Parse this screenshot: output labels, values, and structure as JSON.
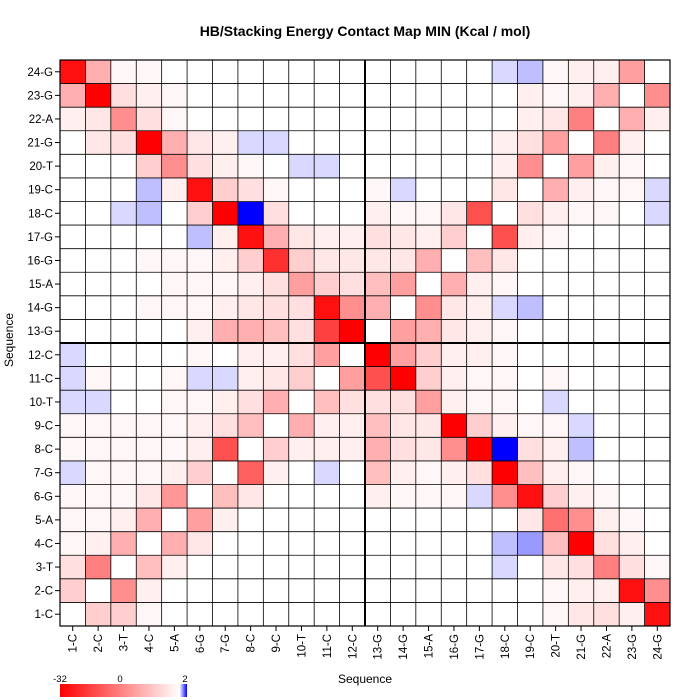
{
  "chart_data": {
    "type": "heatmap",
    "title": "HB/Stacking Energy Contact Map MIN (Kcal / mol)",
    "xlabel": "Sequence",
    "ylabel": "Sequence",
    "labels": [
      "1-C",
      "2-C",
      "3-T",
      "4-C",
      "5-A",
      "6-G",
      "7-G",
      "8-C",
      "9-C",
      "10-T",
      "11-C",
      "12-C",
      "13-G",
      "14-G",
      "15-A",
      "16-G",
      "17-G",
      "18-C",
      "19-C",
      "20-T",
      "21-G",
      "22-A",
      "23-G",
      "24-G"
    ],
    "color_range": [
      -32,
      2
    ],
    "colorbar_ticks": [
      "-32",
      "0",
      "2"
    ],
    "colors": {
      "negative": "#ff0000",
      "zero": "#ffffff",
      "positive": "#0000ff"
    },
    "strand_separator_after": 12,
    "cells": [
      [
        1,
        1,
        0
      ],
      [
        1,
        2,
        -6
      ],
      [
        1,
        3,
        -6
      ],
      [
        1,
        4,
        -1
      ],
      [
        1,
        20,
        -1
      ],
      [
        1,
        21,
        -3
      ],
      [
        1,
        22,
        -4
      ],
      [
        1,
        23,
        -2
      ],
      [
        1,
        24,
        -30
      ],
      [
        2,
        1,
        -6
      ],
      [
        2,
        2,
        0
      ],
      [
        2,
        3,
        -14
      ],
      [
        2,
        4,
        -2
      ],
      [
        2,
        20,
        -1
      ],
      [
        2,
        21,
        -2
      ],
      [
        2,
        22,
        -2
      ],
      [
        2,
        23,
        -30
      ],
      [
        2,
        24,
        -14
      ],
      [
        3,
        1,
        -4
      ],
      [
        3,
        2,
        -16
      ],
      [
        3,
        3,
        0
      ],
      [
        3,
        4,
        -8
      ],
      [
        3,
        5,
        -2
      ],
      [
        3,
        18,
        0.3
      ],
      [
        3,
        20,
        -3
      ],
      [
        3,
        21,
        -4
      ],
      [
        3,
        22,
        -16
      ],
      [
        3,
        23,
        -4
      ],
      [
        3,
        24,
        -1
      ],
      [
        4,
        1,
        -1
      ],
      [
        4,
        2,
        -2
      ],
      [
        4,
        3,
        -10
      ],
      [
        4,
        4,
        0
      ],
      [
        4,
        5,
        -10
      ],
      [
        4,
        6,
        -3
      ],
      [
        4,
        18,
        0.5
      ],
      [
        4,
        19,
        0.8
      ],
      [
        4,
        20,
        -8
      ],
      [
        4,
        21,
        -32
      ],
      [
        4,
        22,
        -4
      ],
      [
        4,
        23,
        -2
      ],
      [
        5,
        1,
        -1
      ],
      [
        5,
        2,
        -1
      ],
      [
        5,
        3,
        -2
      ],
      [
        5,
        4,
        -10
      ],
      [
        5,
        5,
        0
      ],
      [
        5,
        6,
        -12
      ],
      [
        5,
        7,
        -2
      ],
      [
        5,
        19,
        -3
      ],
      [
        5,
        20,
        -18
      ],
      [
        5,
        21,
        -14
      ],
      [
        5,
        22,
        -2
      ],
      [
        5,
        23,
        -1
      ],
      [
        6,
        1,
        -1
      ],
      [
        6,
        2,
        -1
      ],
      [
        6,
        3,
        -1
      ],
      [
        6,
        4,
        -3
      ],
      [
        6,
        5,
        -13
      ],
      [
        6,
        6,
        0
      ],
      [
        6,
        7,
        -8
      ],
      [
        6,
        8,
        -3
      ],
      [
        6,
        13,
        -2
      ],
      [
        6,
        14,
        -1
      ],
      [
        6,
        15,
        -1
      ],
      [
        6,
        16,
        -1
      ],
      [
        6,
        17,
        0.3
      ],
      [
        6,
        18,
        -14
      ],
      [
        6,
        19,
        -30
      ],
      [
        6,
        20,
        -6
      ],
      [
        6,
        21,
        -2
      ],
      [
        6,
        22,
        -1
      ],
      [
        7,
        1,
        0.3
      ],
      [
        7,
        2,
        -1
      ],
      [
        7,
        3,
        -1
      ],
      [
        7,
        4,
        -1
      ],
      [
        7,
        5,
        -2
      ],
      [
        7,
        6,
        -6
      ],
      [
        7,
        7,
        0
      ],
      [
        7,
        8,
        -20
      ],
      [
        7,
        9,
        -2
      ],
      [
        7,
        11,
        0.3
      ],
      [
        7,
        13,
        -8
      ],
      [
        7,
        14,
        -2
      ],
      [
        7,
        15,
        -1
      ],
      [
        7,
        16,
        -2
      ],
      [
        7,
        17,
        -4
      ],
      [
        7,
        18,
        -32
      ],
      [
        7,
        19,
        -8
      ],
      [
        7,
        20,
        -2
      ],
      [
        7,
        21,
        -1
      ],
      [
        8,
        1,
        -1
      ],
      [
        8,
        2,
        -1
      ],
      [
        8,
        3,
        -1
      ],
      [
        8,
        4,
        -1
      ],
      [
        8,
        5,
        -1
      ],
      [
        8,
        6,
        -2
      ],
      [
        8,
        7,
        -22
      ],
      [
        8,
        8,
        0
      ],
      [
        8,
        9,
        -6
      ],
      [
        8,
        10,
        -2
      ],
      [
        8,
        11,
        -2
      ],
      [
        8,
        12,
        -2
      ],
      [
        8,
        13,
        -10
      ],
      [
        8,
        14,
        -4
      ],
      [
        8,
        15,
        -3
      ],
      [
        8,
        16,
        -14
      ],
      [
        8,
        17,
        -32
      ],
      [
        8,
        18,
        2
      ],
      [
        8,
        19,
        -4
      ],
      [
        8,
        20,
        -2
      ],
      [
        8,
        21,
        0.5
      ],
      [
        9,
        1,
        -1
      ],
      [
        9,
        2,
        -1
      ],
      [
        9,
        3,
        -1
      ],
      [
        9,
        4,
        -1
      ],
      [
        9,
        5,
        -1
      ],
      [
        9,
        6,
        -2
      ],
      [
        9,
        7,
        -4
      ],
      [
        9,
        8,
        -8
      ],
      [
        9,
        9,
        0
      ],
      [
        9,
        10,
        -10
      ],
      [
        9,
        11,
        -2
      ],
      [
        9,
        12,
        -2
      ],
      [
        9,
        13,
        -8
      ],
      [
        9,
        14,
        -3
      ],
      [
        9,
        15,
        -3
      ],
      [
        9,
        16,
        -32
      ],
      [
        9,
        17,
        -6
      ],
      [
        9,
        18,
        -2
      ],
      [
        9,
        19,
        -1
      ],
      [
        9,
        20,
        -1
      ],
      [
        9,
        21,
        0.3
      ],
      [
        10,
        1,
        0.3
      ],
      [
        10,
        2,
        0.3
      ],
      [
        10,
        5,
        -1
      ],
      [
        10,
        6,
        -1
      ],
      [
        10,
        7,
        -2
      ],
      [
        10,
        8,
        -4
      ],
      [
        10,
        9,
        -10
      ],
      [
        10,
        10,
        0
      ],
      [
        10,
        11,
        -8
      ],
      [
        10,
        12,
        -4
      ],
      [
        10,
        13,
        -4
      ],
      [
        10,
        14,
        -4
      ],
      [
        10,
        15,
        -12
      ],
      [
        10,
        16,
        -2
      ],
      [
        10,
        17,
        -1
      ],
      [
        10,
        18,
        -1
      ],
      [
        10,
        20,
        0.3
      ],
      [
        11,
        1,
        0.3
      ],
      [
        11,
        2,
        -1
      ],
      [
        11,
        5,
        -1
      ],
      [
        11,
        6,
        0.3
      ],
      [
        11,
        7,
        0.3
      ],
      [
        11,
        8,
        -2
      ],
      [
        11,
        9,
        -3
      ],
      [
        11,
        10,
        -6
      ],
      [
        11,
        11,
        0
      ],
      [
        11,
        12,
        -12
      ],
      [
        11,
        13,
        -22
      ],
      [
        11,
        14,
        -32
      ],
      [
        11,
        15,
        -6
      ],
      [
        11,
        16,
        -2
      ],
      [
        11,
        17,
        -1
      ],
      [
        11,
        18,
        -1
      ],
      [
        11,
        20,
        -1
      ],
      [
        12,
        1,
        0.3
      ],
      [
        12,
        6,
        -1
      ],
      [
        12,
        8,
        -2
      ],
      [
        12,
        9,
        -2
      ],
      [
        12,
        10,
        -4
      ],
      [
        12,
        11,
        -12
      ],
      [
        12,
        12,
        0
      ],
      [
        12,
        13,
        -32
      ],
      [
        12,
        14,
        -12
      ],
      [
        12,
        15,
        -6
      ],
      [
        12,
        16,
        -2
      ],
      [
        12,
        17,
        -2
      ],
      [
        12,
        18,
        -1
      ],
      [
        13,
        6,
        -2
      ],
      [
        13,
        7,
        -10
      ],
      [
        13,
        8,
        -10
      ],
      [
        13,
        9,
        -8
      ],
      [
        13,
        10,
        -4
      ],
      [
        13,
        11,
        -24
      ],
      [
        13,
        12,
        -32
      ],
      [
        13,
        13,
        0
      ],
      [
        13,
        14,
        -12
      ],
      [
        13,
        15,
        -10
      ],
      [
        13,
        16,
        -3
      ],
      [
        13,
        17,
        -2
      ],
      [
        13,
        18,
        -1
      ],
      [
        14,
        4,
        -1
      ],
      [
        14,
        5,
        -1
      ],
      [
        14,
        6,
        -1
      ],
      [
        14,
        7,
        -2
      ],
      [
        14,
        8,
        -3
      ],
      [
        14,
        9,
        -4
      ],
      [
        14,
        10,
        -4
      ],
      [
        14,
        11,
        -30
      ],
      [
        14,
        12,
        -14
      ],
      [
        14,
        13,
        -10
      ],
      [
        14,
        14,
        0
      ],
      [
        14,
        15,
        -14
      ],
      [
        14,
        16,
        -3
      ],
      [
        14,
        17,
        -2
      ],
      [
        14,
        18,
        0.3
      ],
      [
        14,
        19,
        0.5
      ],
      [
        15,
        5,
        -1
      ],
      [
        15,
        6,
        -1
      ],
      [
        15,
        7,
        -1
      ],
      [
        15,
        8,
        -2
      ],
      [
        15,
        9,
        -4
      ],
      [
        15,
        10,
        -12
      ],
      [
        15,
        11,
        -6
      ],
      [
        15,
        12,
        -4
      ],
      [
        15,
        13,
        -8
      ],
      [
        15,
        14,
        -12
      ],
      [
        15,
        15,
        0
      ],
      [
        15,
        16,
        -10
      ],
      [
        15,
        17,
        -2
      ],
      [
        15,
        18,
        -1
      ],
      [
        16,
        4,
        -1
      ],
      [
        16,
        5,
        -1
      ],
      [
        16,
        6,
        -1
      ],
      [
        16,
        7,
        -2
      ],
      [
        16,
        8,
        -6
      ],
      [
        16,
        9,
        -26
      ],
      [
        16,
        10,
        -6
      ],
      [
        16,
        11,
        -3
      ],
      [
        16,
        12,
        -3
      ],
      [
        16,
        13,
        -3
      ],
      [
        16,
        14,
        -3
      ],
      [
        16,
        15,
        -10
      ],
      [
        16,
        16,
        0
      ],
      [
        16,
        17,
        -8
      ],
      [
        16,
        18,
        -3
      ],
      [
        17,
        6,
        0.5
      ],
      [
        17,
        7,
        -2
      ],
      [
        17,
        8,
        -30
      ],
      [
        17,
        9,
        -10
      ],
      [
        17,
        10,
        -3
      ],
      [
        17,
        11,
        -2
      ],
      [
        17,
        12,
        -2
      ],
      [
        17,
        13,
        -4
      ],
      [
        17,
        14,
        -3
      ],
      [
        17,
        15,
        -2
      ],
      [
        17,
        16,
        -6
      ],
      [
        17,
        17,
        0
      ],
      [
        17,
        18,
        -22
      ],
      [
        17,
        19,
        -2
      ],
      [
        17,
        20,
        -1
      ],
      [
        18,
        3,
        0.3
      ],
      [
        18,
        4,
        0.5
      ],
      [
        18,
        6,
        -6
      ],
      [
        18,
        7,
        -32
      ],
      [
        18,
        8,
        2
      ],
      [
        18,
        9,
        -4
      ],
      [
        18,
        13,
        -2
      ],
      [
        18,
        14,
        -1
      ],
      [
        18,
        15,
        -1
      ],
      [
        18,
        16,
        -3
      ],
      [
        18,
        17,
        -22
      ],
      [
        18,
        18,
        0
      ],
      [
        18,
        19,
        -4
      ],
      [
        18,
        20,
        -2
      ],
      [
        18,
        21,
        -1
      ],
      [
        18,
        22,
        -1
      ],
      [
        18,
        24,
        0.3
      ],
      [
        19,
        4,
        0.5
      ],
      [
        19,
        5,
        -2
      ],
      [
        19,
        6,
        -30
      ],
      [
        19,
        7,
        -6
      ],
      [
        19,
        8,
        -4
      ],
      [
        19,
        9,
        -1
      ],
      [
        19,
        13,
        -1
      ],
      [
        19,
        14,
        0.3
      ],
      [
        19,
        18,
        -3
      ],
      [
        19,
        19,
        0
      ],
      [
        19,
        20,
        -10
      ],
      [
        19,
        21,
        -2
      ],
      [
        19,
        22,
        -1
      ],
      [
        19,
        23,
        -1
      ],
      [
        19,
        24,
        0.3
      ],
      [
        20,
        4,
        -6
      ],
      [
        20,
        5,
        -14
      ],
      [
        20,
        6,
        -4
      ],
      [
        20,
        7,
        -2
      ],
      [
        20,
        8,
        -1
      ],
      [
        20,
        10,
        0.3
      ],
      [
        20,
        11,
        0.3
      ],
      [
        20,
        18,
        -2
      ],
      [
        20,
        19,
        -14
      ],
      [
        20,
        20,
        0
      ],
      [
        20,
        21,
        -12
      ],
      [
        20,
        22,
        -2
      ],
      [
        20,
        23,
        -1
      ],
      [
        21,
        2,
        -3
      ],
      [
        21,
        3,
        -4
      ],
      [
        21,
        4,
        -32
      ],
      [
        21,
        5,
        -10
      ],
      [
        21,
        6,
        -3
      ],
      [
        21,
        7,
        -2
      ],
      [
        21,
        8,
        0.3
      ],
      [
        21,
        9,
        0.3
      ],
      [
        21,
        18,
        -2
      ],
      [
        21,
        19,
        -4
      ],
      [
        21,
        20,
        -12
      ],
      [
        21,
        21,
        0
      ],
      [
        21,
        22,
        -16
      ],
      [
        21,
        23,
        -2
      ],
      [
        22,
        1,
        -2
      ],
      [
        22,
        2,
        -3
      ],
      [
        22,
        3,
        -14
      ],
      [
        22,
        4,
        -4
      ],
      [
        22,
        5,
        -1
      ],
      [
        22,
        19,
        -2
      ],
      [
        22,
        20,
        -3
      ],
      [
        22,
        21,
        -16
      ],
      [
        22,
        22,
        0
      ],
      [
        22,
        23,
        -10
      ],
      [
        22,
        24,
        -2
      ],
      [
        23,
        1,
        -10
      ],
      [
        23,
        2,
        -32
      ],
      [
        23,
        3,
        -4
      ],
      [
        23,
        4,
        -2
      ],
      [
        23,
        5,
        -1
      ],
      [
        23,
        19,
        -2
      ],
      [
        23,
        20,
        -1
      ],
      [
        23,
        21,
        -2
      ],
      [
        23,
        22,
        -10
      ],
      [
        23,
        23,
        0
      ],
      [
        23,
        24,
        -14
      ],
      [
        24,
        1,
        -30
      ],
      [
        24,
        2,
        -10
      ],
      [
        24,
        3,
        -1
      ],
      [
        24,
        4,
        -1
      ],
      [
        24,
        18,
        0.3
      ],
      [
        24,
        19,
        0.5
      ],
      [
        24,
        20,
        -1
      ],
      [
        24,
        21,
        -2
      ],
      [
        24,
        22,
        -2
      ],
      [
        24,
        23,
        -12
      ],
      [
        24,
        24,
        0
      ]
    ]
  }
}
